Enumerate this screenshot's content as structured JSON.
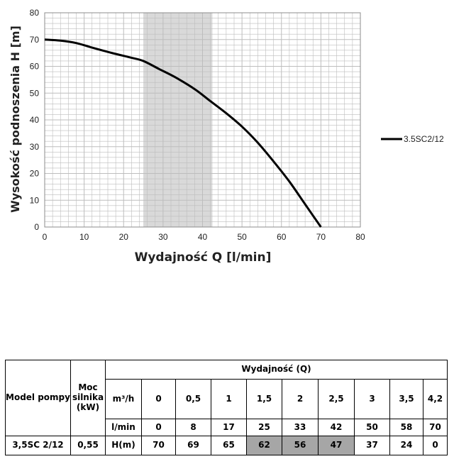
{
  "chart_data": {
    "type": "line",
    "xlabel": "Wydajność Q [l/min]",
    "ylabel": "Wysokość podnoszenia H [m]",
    "xlim": [
      0,
      80
    ],
    "ylim": [
      0,
      80
    ],
    "x_ticks": [
      "0",
      "10",
      "20",
      "30",
      "40",
      "50",
      "60",
      "70",
      "80"
    ],
    "y_ticks": [
      "0",
      "10",
      "20",
      "30",
      "40",
      "50",
      "60",
      "70",
      "80"
    ],
    "grid": true,
    "legend_position": "right",
    "highlight_range_x": [
      25,
      42.5
    ],
    "series": [
      {
        "name": "3.5SC2/12",
        "color": "#000000",
        "x": [
          0,
          4,
          8,
          12,
          17,
          22,
          25,
          29,
          33,
          38,
          42,
          46,
          50,
          54,
          58,
          62,
          66,
          70
        ],
        "y": [
          70,
          69.6,
          68.7,
          67,
          65,
          63.2,
          62,
          59,
          56,
          51.5,
          47,
          42.5,
          37.5,
          31.5,
          24.5,
          17,
          8.5,
          0
        ]
      }
    ]
  },
  "table": {
    "header_model": "Model pompy",
    "header_power": "Moc silnika (kW)",
    "header_flow": "Wydajność (Q)",
    "unit_m3h": "m³/h",
    "unit_lmin": "l/min",
    "unit_h": "H(m)",
    "m3h": [
      "0",
      "0,5",
      "1",
      "1,5",
      "2",
      "2,5",
      "3",
      "3,5",
      "4,2"
    ],
    "lmin": [
      "0",
      "8",
      "17",
      "25",
      "33",
      "42",
      "50",
      "58",
      "70"
    ],
    "model": "3,5SC 2/12",
    "power": "0,55",
    "h": [
      "70",
      "69",
      "65",
      "62",
      "56",
      "47",
      "37",
      "24",
      "0"
    ],
    "highlight_columns": [
      3,
      4,
      5
    ],
    "highlight_color": "#a6a6a6"
  }
}
